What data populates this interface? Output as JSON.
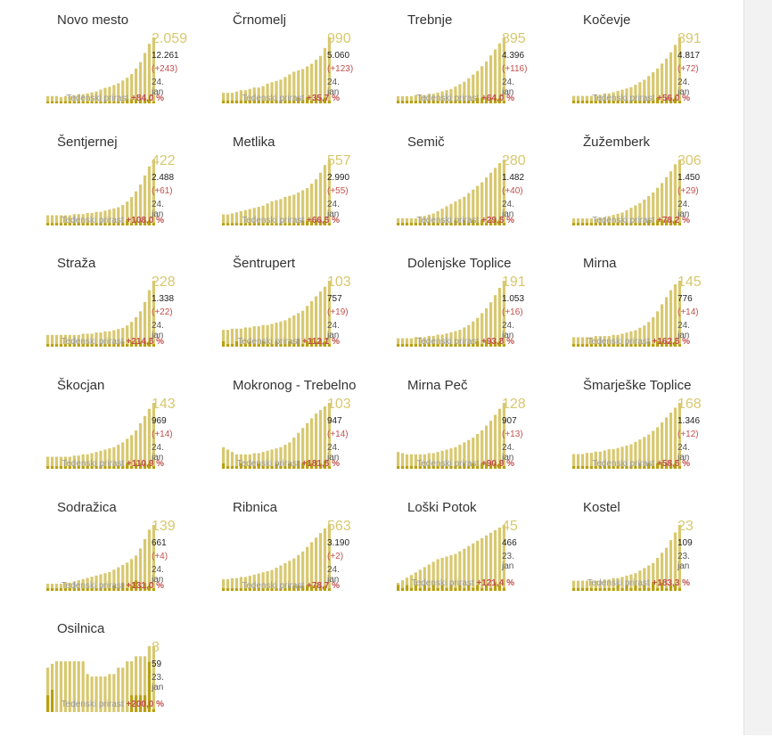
{
  "chart_label": "Tedenski prirast",
  "colors": {
    "bar": "#d8c86f",
    "accent": "#b8a010",
    "pct": "#c0504d",
    "total": "#d8c86f"
  },
  "chart_data": [
    {
      "type": "bar",
      "title": "Novo mesto",
      "value": "2.059",
      "total": "12.261",
      "change": "(+243)",
      "date": "24. jan",
      "weekly": "+84,0 %",
      "values": [
        8,
        8,
        8,
        7,
        8,
        8,
        9,
        10,
        10,
        11,
        12,
        13,
        15,
        17,
        18,
        20,
        22,
        25,
        28,
        32,
        38,
        45,
        55,
        65,
        72
      ],
      "accents": [
        1,
        1,
        1,
        1,
        1,
        1,
        1,
        1,
        1,
        1,
        1,
        1,
        1,
        1,
        1,
        1,
        1,
        1,
        2,
        2,
        2,
        2,
        2,
        2,
        1
      ]
    },
    {
      "type": "bar",
      "title": "Črnomelj",
      "value": "990",
      "total": "5.060",
      "change": "(+123)",
      "date": "24. jan",
      "weekly": "+35,7 %",
      "values": [
        8,
        8,
        8,
        9,
        10,
        10,
        11,
        12,
        12,
        13,
        15,
        16,
        17,
        18,
        20,
        22,
        24,
        25,
        26,
        28,
        30,
        33,
        36,
        42,
        50
      ],
      "accents": [
        1,
        1,
        1,
        1,
        1,
        1,
        1,
        1,
        1,
        1,
        1,
        1,
        1,
        1,
        1,
        1,
        1,
        2,
        1,
        2,
        1,
        2,
        2,
        2,
        1
      ]
    },
    {
      "type": "bar",
      "title": "Trebnje",
      "value": "895",
      "total": "4.396",
      "change": "(+116)",
      "date": "24. jan",
      "weekly": "+64,0 %",
      "values": [
        6,
        6,
        6,
        6,
        7,
        7,
        7,
        8,
        8,
        9,
        10,
        11,
        12,
        14,
        16,
        18,
        21,
        24,
        27,
        31,
        35,
        40,
        45,
        50,
        55
      ],
      "accents": [
        1,
        1,
        1,
        1,
        1,
        1,
        1,
        1,
        1,
        1,
        1,
        1,
        1,
        1,
        1,
        1,
        1,
        1,
        2,
        2,
        2,
        2,
        2,
        2,
        1
      ]
    },
    {
      "type": "bar",
      "title": "Kočevje",
      "value": "891",
      "total": "4.817",
      "change": "(+72)",
      "date": "24. jan",
      "weekly": "+56,0 %",
      "values": [
        6,
        6,
        6,
        6,
        6,
        7,
        7,
        8,
        8,
        9,
        10,
        11,
        12,
        13,
        15,
        17,
        19,
        22,
        25,
        28,
        32,
        36,
        41,
        47,
        53
      ],
      "accents": [
        1,
        1,
        1,
        1,
        1,
        1,
        1,
        1,
        1,
        1,
        1,
        1,
        1,
        1,
        1,
        1,
        1,
        1,
        1,
        2,
        1,
        2,
        2,
        2,
        1
      ]
    },
    {
      "type": "bar",
      "title": "Šentjernej",
      "value": "422",
      "total": "2.488",
      "change": "(+61)",
      "date": "24. jan",
      "weekly": "+108,0 %",
      "values": [
        9,
        9,
        9,
        9,
        9,
        9,
        10,
        10,
        10,
        11,
        11,
        12,
        12,
        13,
        14,
        15,
        16,
        18,
        21,
        25,
        30,
        36,
        44,
        52,
        58
      ],
      "accents": [
        1,
        1,
        1,
        1,
        1,
        1,
        1,
        1,
        1,
        1,
        1,
        1,
        1,
        1,
        1,
        1,
        1,
        1,
        2,
        1,
        2,
        2,
        2,
        2,
        1
      ]
    },
    {
      "type": "bar",
      "title": "Metlika",
      "value": "557",
      "total": "2.990",
      "change": "(+55)",
      "date": "24. jan",
      "weekly": "+66,5 %",
      "values": [
        10,
        10,
        11,
        12,
        13,
        14,
        15,
        16,
        17,
        18,
        20,
        22,
        23,
        24,
        26,
        27,
        28,
        30,
        32,
        34,
        38,
        42,
        48,
        55,
        60
      ],
      "accents": [
        1,
        1,
        1,
        1,
        1,
        1,
        1,
        1,
        1,
        1,
        1,
        1,
        1,
        1,
        1,
        1,
        1,
        1,
        2,
        2,
        2,
        2,
        2,
        2,
        1
      ]
    },
    {
      "type": "bar",
      "title": "Semič",
      "value": "280",
      "total": "1.482",
      "change": "(+40)",
      "date": "24. jan",
      "weekly": "+29,5 %",
      "values": [
        6,
        6,
        6,
        6,
        6,
        7,
        8,
        9,
        10,
        12,
        14,
        16,
        18,
        20,
        22,
        24,
        27,
        30,
        33,
        36,
        40,
        44,
        48,
        52,
        55
      ],
      "accents": [
        1,
        1,
        1,
        1,
        1,
        1,
        1,
        1,
        1,
        1,
        1,
        1,
        1,
        2,
        1,
        2,
        1,
        2,
        1,
        2,
        1,
        2,
        2,
        2,
        1
      ]
    },
    {
      "type": "bar",
      "title": "Žužemberk",
      "value": "306",
      "total": "1.450",
      "change": "(+29)",
      "date": "24. jan",
      "weekly": "+78,2 %",
      "values": [
        6,
        6,
        6,
        6,
        6,
        6,
        7,
        7,
        8,
        9,
        10,
        11,
        13,
        15,
        17,
        19,
        22,
        25,
        28,
        32,
        36,
        41,
        46,
        52,
        56
      ],
      "accents": [
        1,
        1,
        1,
        1,
        1,
        1,
        1,
        1,
        1,
        1,
        1,
        1,
        1,
        1,
        1,
        1,
        1,
        2,
        1,
        2,
        2,
        2,
        2,
        2,
        1
      ]
    },
    {
      "type": "bar",
      "title": "Straža",
      "value": "228",
      "total": "1.338",
      "change": "(+22)",
      "date": "24. jan",
      "weekly": "+214,5 %",
      "values": [
        10,
        10,
        10,
        10,
        10,
        10,
        10,
        10,
        11,
        11,
        11,
        12,
        12,
        13,
        13,
        14,
        15,
        16,
        18,
        21,
        25,
        30,
        38,
        48,
        56
      ],
      "accents": [
        1,
        1,
        1,
        1,
        1,
        1,
        1,
        1,
        1,
        1,
        1,
        1,
        1,
        1,
        1,
        1,
        1,
        2,
        1,
        2,
        2,
        2,
        2,
        2,
        1
      ]
    },
    {
      "type": "bar",
      "title": "Šentrupert",
      "value": "103",
      "total": "757",
      "change": "(+19)",
      "date": "24. jan",
      "weekly": "+112,1 %",
      "values": [
        14,
        14,
        15,
        15,
        15,
        16,
        16,
        17,
        17,
        18,
        18,
        19,
        20,
        21,
        22,
        24,
        26,
        28,
        30,
        34,
        38,
        42,
        46,
        50,
        55
      ],
      "accents": [
        2,
        1,
        1,
        2,
        1,
        1,
        2,
        1,
        1,
        2,
        1,
        1,
        2,
        1,
        1,
        2,
        1,
        3,
        1,
        2,
        3,
        2,
        3,
        2,
        1
      ]
    },
    {
      "type": "bar",
      "title": "Dolenjske Toplice",
      "value": "191",
      "total": "1.053",
      "change": "(+16)",
      "date": "24. jan",
      "weekly": "+93,8 %",
      "values": [
        7,
        7,
        7,
        7,
        8,
        8,
        8,
        9,
        9,
        10,
        10,
        11,
        12,
        13,
        14,
        16,
        18,
        21,
        24,
        28,
        32,
        37,
        43,
        49,
        55
      ],
      "accents": [
        1,
        1,
        1,
        1,
        1,
        1,
        1,
        1,
        1,
        1,
        1,
        1,
        1,
        1,
        1,
        1,
        1,
        1,
        2,
        1,
        2,
        2,
        2,
        2,
        1
      ]
    },
    {
      "type": "bar",
      "title": "Mirna",
      "value": "145",
      "total": "776",
      "change": "(+14)",
      "date": "24. jan",
      "weekly": "+162,5 %",
      "values": [
        8,
        8,
        8,
        8,
        8,
        9,
        9,
        9,
        9,
        10,
        10,
        11,
        12,
        13,
        14,
        16,
        18,
        21,
        25,
        30,
        36,
        42,
        48,
        53,
        56
      ],
      "accents": [
        1,
        1,
        1,
        1,
        1,
        1,
        1,
        1,
        1,
        1,
        1,
        1,
        1,
        1,
        1,
        1,
        1,
        2,
        1,
        2,
        2,
        2,
        2,
        2,
        1
      ]
    },
    {
      "type": "bar",
      "title": "Škocjan",
      "value": "143",
      "total": "969",
      "change": "(+14)",
      "date": "24. jan",
      "weekly": "+110,9 %",
      "values": [
        10,
        10,
        10,
        10,
        10,
        10,
        11,
        11,
        12,
        12,
        13,
        14,
        15,
        16,
        17,
        18,
        20,
        22,
        25,
        28,
        32,
        38,
        44,
        50,
        55
      ],
      "accents": [
        1,
        1,
        1,
        1,
        1,
        1,
        1,
        1,
        1,
        1,
        1,
        1,
        1,
        1,
        1,
        1,
        1,
        1,
        2,
        1,
        2,
        2,
        2,
        2,
        1
      ]
    },
    {
      "type": "bar",
      "title": "Mokronog - Trebelno",
      "value": "103",
      "total": "947",
      "change": "(+14)",
      "date": "24. jan",
      "weekly": "+181,5 %",
      "values": [
        18,
        16,
        14,
        12,
        12,
        12,
        12,
        13,
        13,
        14,
        15,
        16,
        17,
        18,
        20,
        22,
        26,
        30,
        34,
        38,
        42,
        46,
        49,
        52,
        55
      ],
      "accents": [
        2,
        1,
        1,
        1,
        2,
        1,
        1,
        1,
        2,
        1,
        1,
        1,
        2,
        1,
        1,
        2,
        1,
        3,
        2,
        3,
        2,
        3,
        2,
        3,
        1
      ]
    },
    {
      "type": "bar",
      "title": "Mirna Peč",
      "value": "128",
      "total": "907",
      "change": "(+13)",
      "date": "24. jan",
      "weekly": "+90,9 %",
      "values": [
        14,
        13,
        12,
        12,
        12,
        12,
        12,
        13,
        13,
        14,
        15,
        16,
        17,
        18,
        20,
        22,
        24,
        26,
        29,
        32,
        36,
        40,
        45,
        50,
        55
      ],
      "accents": [
        1,
        1,
        1,
        1,
        1,
        1,
        1,
        1,
        1,
        1,
        1,
        1,
        1,
        1,
        1,
        2,
        1,
        2,
        1,
        2,
        2,
        2,
        2,
        2,
        1
      ]
    },
    {
      "type": "bar",
      "title": "Šmarješke Toplice",
      "value": "168",
      "total": "1.346",
      "change": "(+12)",
      "date": "24. jan",
      "weekly": "+58,5 %",
      "values": [
        12,
        12,
        12,
        13,
        13,
        14,
        14,
        15,
        16,
        16,
        17,
        18,
        19,
        20,
        22,
        24,
        26,
        28,
        31,
        34,
        38,
        42,
        46,
        50,
        54
      ],
      "accents": [
        1,
        1,
        1,
        1,
        1,
        1,
        1,
        1,
        1,
        1,
        1,
        1,
        1,
        1,
        1,
        2,
        1,
        2,
        1,
        2,
        2,
        2,
        2,
        2,
        1
      ]
    },
    {
      "type": "bar",
      "title": "Sodražica",
      "value": "139",
      "total": "661",
      "change": "(+4)",
      "date": "24. jan",
      "weekly": "+131,0 %",
      "values": [
        6,
        6,
        6,
        6,
        7,
        7,
        8,
        9,
        10,
        11,
        12,
        13,
        14,
        15,
        16,
        18,
        20,
        22,
        24,
        27,
        30,
        36,
        44,
        52,
        56
      ],
      "accents": [
        1,
        1,
        1,
        1,
        1,
        1,
        1,
        1,
        1,
        1,
        1,
        1,
        1,
        1,
        1,
        2,
        1,
        3,
        1,
        2,
        4,
        2,
        3,
        2,
        1
      ]
    },
    {
      "type": "bar",
      "title": "Ribnica",
      "value": "563",
      "total": "3.190",
      "change": "(+2)",
      "date": "24. jan",
      "weekly": "+78,7 %",
      "values": [
        10,
        10,
        11,
        11,
        12,
        12,
        13,
        14,
        15,
        16,
        17,
        18,
        20,
        22,
        24,
        26,
        28,
        31,
        34,
        38,
        42,
        46,
        50,
        54,
        57
      ],
      "accents": [
        1,
        1,
        1,
        1,
        1,
        1,
        1,
        1,
        1,
        1,
        1,
        1,
        1,
        1,
        1,
        2,
        2,
        2,
        2,
        2,
        2,
        2,
        2,
        2,
        1
      ]
    },
    {
      "type": "bar",
      "title": "Loški Potok",
      "value": "45",
      "total": "466",
      "change": "",
      "date": "23. jan",
      "weekly": "+121,4 %",
      "values": [
        6,
        8,
        10,
        12,
        14,
        16,
        18,
        20,
        22,
        24,
        25,
        26,
        27,
        28,
        30,
        32,
        34,
        36,
        38,
        40,
        42,
        44,
        46,
        48,
        50
      ],
      "accents": [
        2,
        1,
        2,
        1,
        2,
        1,
        2,
        1,
        2,
        1,
        2,
        1,
        2,
        1,
        2,
        1,
        2,
        1,
        2,
        1,
        2,
        1,
        3,
        2,
        1
      ]
    },
    {
      "type": "bar",
      "title": "Kostel",
      "value": "23",
      "total": "109",
      "change": "",
      "date": "23. jan",
      "weekly": "+183,3 %",
      "values": [
        8,
        8,
        8,
        8,
        8,
        8,
        8,
        9,
        9,
        10,
        10,
        11,
        12,
        13,
        14,
        16,
        18,
        20,
        22,
        26,
        30,
        34,
        40,
        46,
        52
      ],
      "accents": [
        1,
        1,
        1,
        1,
        1,
        1,
        1,
        1,
        1,
        1,
        2,
        1,
        2,
        1,
        2,
        1,
        2,
        1,
        3,
        1,
        3,
        1,
        2,
        2,
        1
      ]
    },
    {
      "type": "bar",
      "title": "Osilnica",
      "value": "8",
      "total": "59",
      "change": "",
      "date": "23. jan",
      "weekly": "+200,0 %",
      "values": [
        35,
        38,
        40,
        40,
        40,
        40,
        40,
        40,
        40,
        30,
        28,
        28,
        28,
        28,
        30,
        30,
        35,
        35,
        40,
        40,
        44,
        44,
        44,
        52,
        52
      ],
      "accents": [
        6,
        8,
        0,
        0,
        0,
        0,
        0,
        0,
        0,
        0,
        0,
        0,
        0,
        0,
        0,
        0,
        0,
        0,
        0,
        6,
        6,
        6,
        6,
        18,
        1
      ]
    }
  ]
}
